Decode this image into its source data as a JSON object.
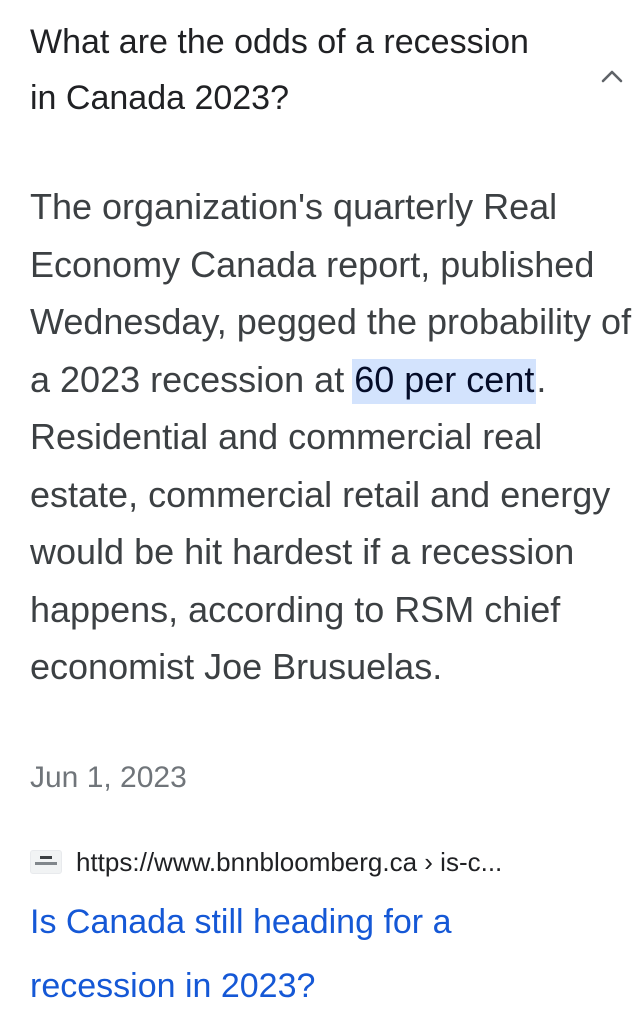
{
  "question": {
    "text": "What are the odds of a recession in Canada 2023?",
    "expanded_icon": "chevron-up-icon"
  },
  "answer": {
    "before_highlight": "The organization's quarterly Real Economy Canada report, published Wednesday, pegged the probability of a 2023 recession at ",
    "highlight": "60 per cent",
    "after_highlight": ". Residential and commercial real estate, commercial retail and energy would be hit hardest if a recession happens, according to RSM chief economist Joe Brusuelas."
  },
  "date": "Jun 1, 2023",
  "source": {
    "favicon": "bnn-bloomberg-favicon",
    "url": "https://www.bnnbloomberg.ca › is-c..."
  },
  "result": {
    "title": "Is Canada still heading for a recession in 2023?"
  },
  "colors": {
    "highlight_bg": "#d3e3fd",
    "link": "#1558d6",
    "body_text": "#3c4043",
    "muted_text": "#70757a"
  }
}
